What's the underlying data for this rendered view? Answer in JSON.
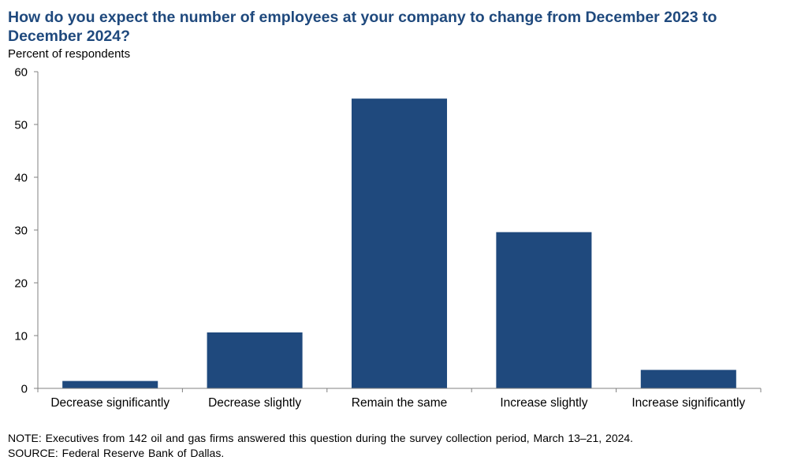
{
  "chart_data": {
    "type": "bar",
    "title": "How do you expect the number of employees at your company to change from December 2023 to December 2024?",
    "ylabel": "Percent of respondents",
    "xlabel": "",
    "categories": [
      "Decrease significantly",
      "Decrease slightly",
      "Remain the same",
      "Increase slightly",
      "Increase significantly"
    ],
    "values": [
      1.4,
      10.6,
      54.9,
      29.6,
      3.5
    ],
    "ylim": [
      0,
      60
    ],
    "yticks": [
      "0",
      "10",
      "20",
      "30",
      "40",
      "50",
      "60"
    ],
    "grid": false,
    "legend": "none",
    "bar_color": "#1f497d"
  },
  "notes": {
    "note": "NOTE: Executives from 142 oil and gas firms answered this question during the survey collection period, March 13–21, 2024.",
    "source": "SOURCE: Federal Reserve Bank of Dallas."
  }
}
